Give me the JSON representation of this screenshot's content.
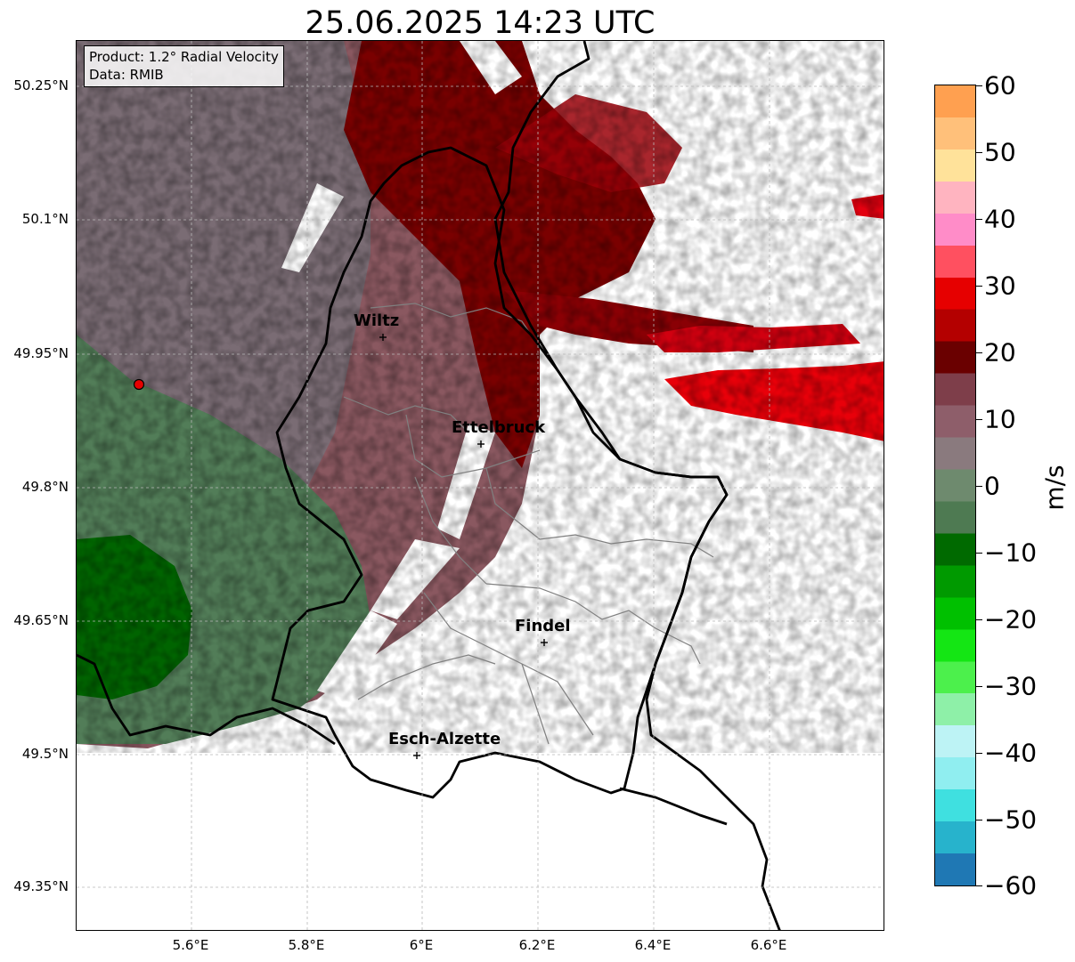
{
  "title": "25.06.2025 14:23 UTC",
  "info_box": {
    "product": "Product: 1.2° Radial Velocity",
    "data": "Data: RMIB"
  },
  "lat_labels": [
    "50.25°N",
    "50.1°N",
    "49.95°N",
    "49.8°N",
    "49.65°N",
    "49.5°N",
    "49.35°N"
  ],
  "lon_labels": [
    "5.6°E",
    "5.8°E",
    "6°E",
    "6.2°E",
    "6.4°E",
    "6.6°E"
  ],
  "cities": [
    {
      "name": "Wiltz"
    },
    {
      "name": "Ettelbruck"
    },
    {
      "name": "Findel"
    },
    {
      "name": "Esch-Alzette"
    }
  ],
  "colorbar": {
    "ticks": [
      "60",
      "50",
      "40",
      "30",
      "20",
      "10",
      "0",
      "−10",
      "−20",
      "−30",
      "−40",
      "−50",
      "−60"
    ],
    "unit": "m/s",
    "range": [
      -60,
      60
    ],
    "colors": [
      "#1f78b4",
      "#27b3cc",
      "#3fe0e0",
      "#90eef0",
      "#bdf3f5",
      "#8ef0a8",
      "#4cf04c",
      "#14e614",
      "#00c000",
      "#009a00",
      "#006a00",
      "#4e7a52",
      "#6e8a6e",
      "#8a7a7e",
      "#8e5e6a",
      "#7e3e4a",
      "#6a0000",
      "#b40000",
      "#e60000",
      "#ff5060",
      "#ff8cc8",
      "#ffb4c0",
      "#ffe29a",
      "#ffc07a",
      "#ffa050"
    ]
  },
  "map_colors": {
    "approaching_dark": "#006400",
    "approaching_mid": "#4f7c56",
    "neutral": "#7b6a73",
    "receding": "#8a5860",
    "receding_dark": "#7a0000",
    "receding_bright": "#e8000a",
    "border": "#000000",
    "district": "#808080"
  }
}
